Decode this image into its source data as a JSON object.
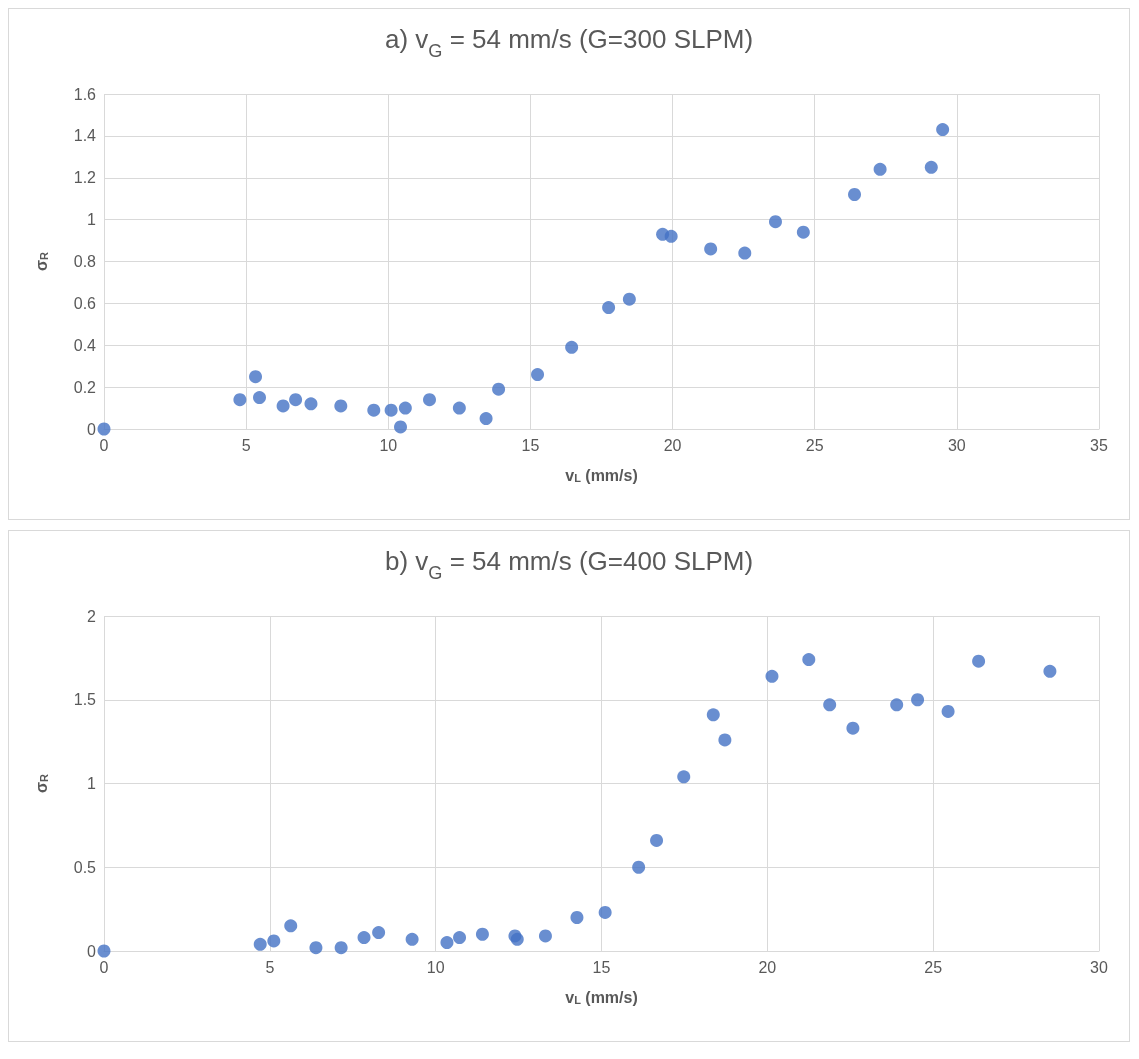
{
  "chart_data": [
    {
      "type": "scatter",
      "title": "a) v$_{G}$ = 54 mm/s (G=300 SLPM)",
      "xlabel": "v$_{L}$ (mm/s)",
      "ylabel": "σ$_{R}$",
      "marker": "circle",
      "grid": true,
      "xlim": [
        0,
        35
      ],
      "xticks": [
        0,
        5,
        10,
        15,
        20,
        25,
        30,
        35
      ],
      "ylim": [
        0,
        1.6
      ],
      "yticks": [
        0,
        0.2,
        0.4,
        0.6,
        0.8,
        1,
        1.2,
        1.4,
        1.6
      ],
      "series": [
        {
          "color": "#4472c4",
          "x": [
            0,
            4.78,
            5.33,
            5.47,
            6.3,
            6.74,
            7.28,
            8.33,
            9.49,
            10.1,
            10.43,
            10.6,
            11.45,
            12.5,
            13.44,
            13.88,
            15.25,
            16.45,
            17.75,
            18.48,
            19.65,
            19.95,
            21.34,
            22.54,
            23.62,
            24.6,
            26.4,
            27.3,
            29.1,
            29.5
          ],
          "values": [
            0,
            0.14,
            0.25,
            0.15,
            0.11,
            0.14,
            0.12,
            0.11,
            0.09,
            0.09,
            0.01,
            0.1,
            0.14,
            0.1,
            0.05,
            0.19,
            0.26,
            0.39,
            0.58,
            0.62,
            0.93,
            0.92,
            0.86,
            0.84,
            0.99,
            0.94,
            1.12,
            1.24,
            1.25,
            1.43
          ]
        }
      ]
    },
    {
      "type": "scatter",
      "title": "b) v$_{G}$ = 54 mm/s (G=400 SLPM)",
      "xlabel": "v$_{L}$ (mm/s)",
      "ylabel": "σ$_{R}$",
      "marker": "circle",
      "grid": true,
      "xlim": [
        0,
        30
      ],
      "xticks": [
        0,
        5,
        10,
        15,
        20,
        25,
        30
      ],
      "ylim": [
        0,
        2
      ],
      "yticks": [
        0,
        0.5,
        1,
        1.5,
        2
      ],
      "series": [
        {
          "color": "#4472c4",
          "x": [
            0,
            4.71,
            5.12,
            5.63,
            6.39,
            7.15,
            7.84,
            8.28,
            9.29,
            10.34,
            10.72,
            11.41,
            12.39,
            12.46,
            13.31,
            14.26,
            15.11,
            16.12,
            16.66,
            17.48,
            18.37,
            18.72,
            20.14,
            21.25,
            21.88,
            22.58,
            23.9,
            24.53,
            25.45,
            26.37,
            28.52
          ],
          "values": [
            0,
            0.04,
            0.06,
            0.15,
            0.02,
            0.02,
            0.08,
            0.11,
            0.07,
            0.05,
            0.08,
            0.1,
            0.09,
            0.07,
            0.09,
            0.2,
            0.23,
            0.5,
            0.66,
            1.04,
            1.41,
            1.26,
            1.64,
            1.74,
            1.47,
            1.33,
            1.47,
            1.5,
            1.43,
            1.73,
            1.67
          ]
        }
      ]
    }
  ]
}
